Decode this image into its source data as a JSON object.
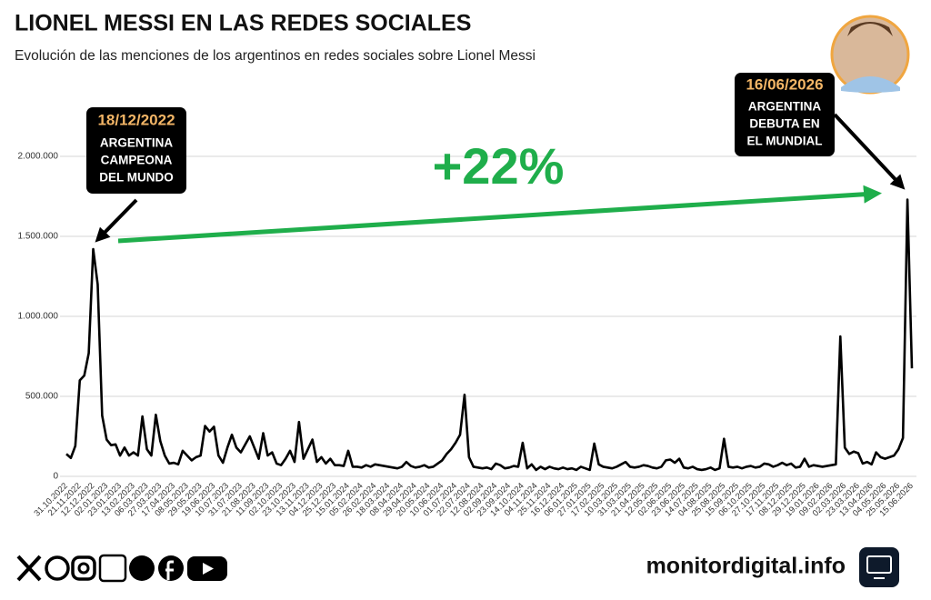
{
  "chart_data": {
    "type": "line",
    "title": "LIONEL MESSI EN LAS REDES SOCIALES",
    "subtitle": "Evolución de las menciones de los argentinos en redes sociales sobre Lionel Messi",
    "color": "#000000",
    "categories": [
      "31.10.2022",
      null,
      null,
      "21.11.2022",
      null,
      null,
      "12.12.2022",
      null,
      null,
      "02.01.2023",
      null,
      null,
      "23.01.2023",
      null,
      null,
      "13.02.2023",
      null,
      null,
      "06.03.2023",
      null,
      null,
      "27.03.2023",
      null,
      null,
      "17.04.2023",
      null,
      null,
      "08.05.2023",
      null,
      null,
      "29.05.2023",
      null,
      null,
      "19.06.2023",
      null,
      null,
      "10.07.2023",
      null,
      null,
      "31.07.2023",
      null,
      null,
      "21.08.2023",
      null,
      null,
      "11.09.2023",
      null,
      null,
      "02.10.2023",
      null,
      null,
      "23.10.2023",
      null,
      null,
      "13.11.2023",
      null,
      null,
      "04.12.2023",
      null,
      null,
      "25.12.2023",
      null,
      null,
      "15.01.2024",
      null,
      null,
      "05.02.2024",
      null,
      null,
      "26.02.2024",
      null,
      null,
      "18.03.2024",
      null,
      null,
      "08.04.2024",
      null,
      null,
      "29.04.2024",
      null,
      null,
      "20.05.2024",
      null,
      null,
      "10.06.2024",
      null,
      null,
      "01.07.2024",
      null,
      null,
      "22.07.2024",
      null,
      null,
      "12.08.2024",
      null,
      null,
      "02.09.2024",
      null,
      null,
      "23.09.2024",
      null,
      null,
      "14.10.2024",
      null,
      null,
      "04.11.2024",
      null,
      null,
      "25.11.2024",
      null,
      null,
      "16.12.2024",
      null,
      null,
      "06.01.2025",
      null,
      null,
      "27.01.2025",
      null,
      null,
      "17.02.2025",
      null,
      null,
      "10.03.2025",
      null,
      null,
      "31.03.2025",
      null,
      null,
      "21.04.2025",
      null,
      null,
      "12.05.2025",
      null,
      null,
      "02.06.2025",
      null,
      null,
      "23.06.2025",
      null,
      null,
      "14.07.2025",
      null,
      null,
      "04.08.2025",
      null,
      null,
      "25.08.2025",
      null,
      null,
      "15.09.2025",
      null,
      null,
      "06.10.2025",
      null,
      null,
      "27.10.2025",
      null,
      null,
      "17.11.2025",
      null,
      null,
      "08.12.2025",
      null,
      null,
      "29.12.2025",
      null,
      null,
      "19.01.2026",
      null,
      null,
      "09.02.2026",
      null,
      null,
      "02.03.2026",
      null,
      null,
      "23.03.2026",
      null,
      null,
      "13.04.2026",
      null,
      null,
      "04.05.2026",
      null,
      null,
      "25.05.2026",
      null,
      null,
      "15.06.2026"
    ],
    "values": [
      140000,
      115000,
      190000,
      600000,
      630000,
      770000,
      1420000,
      1200000,
      380000,
      230000,
      195000,
      200000,
      130000,
      180000,
      130000,
      150000,
      130000,
      375000,
      170000,
      130000,
      385000,
      220000,
      130000,
      80000,
      85000,
      75000,
      160000,
      130000,
      100000,
      120000,
      130000,
      315000,
      280000,
      310000,
      130000,
      85000,
      180000,
      260000,
      180000,
      150000,
      200000,
      250000,
      180000,
      110000,
      270000,
      130000,
      150000,
      80000,
      70000,
      110000,
      160000,
      90000,
      340000,
      110000,
      170000,
      230000,
      90000,
      120000,
      80000,
      110000,
      70000,
      70000,
      65000,
      160000,
      60000,
      60000,
      55000,
      70000,
      60000,
      75000,
      70000,
      65000,
      60000,
      55000,
      50000,
      60000,
      90000,
      65000,
      55000,
      60000,
      70000,
      55000,
      60000,
      80000,
      100000,
      140000,
      170000,
      210000,
      260000,
      510000,
      120000,
      60000,
      55000,
      50000,
      55000,
      45000,
      80000,
      70000,
      50000,
      55000,
      65000,
      60000,
      210000,
      50000,
      75000,
      40000,
      60000,
      45000,
      60000,
      50000,
      45000,
      55000,
      45000,
      50000,
      40000,
      60000,
      50000,
      40000,
      205000,
      75000,
      60000,
      55000,
      50000,
      60000,
      75000,
      90000,
      60000,
      55000,
      60000,
      70000,
      65000,
      55000,
      50000,
      60000,
      100000,
      105000,
      85000,
      110000,
      55000,
      50000,
      60000,
      45000,
      40000,
      45000,
      55000,
      40000,
      50000,
      235000,
      60000,
      55000,
      60000,
      50000,
      60000,
      65000,
      55000,
      60000,
      80000,
      75000,
      60000,
      70000,
      85000,
      70000,
      80000,
      55000,
      60000,
      110000,
      60000,
      70000,
      65000,
      60000,
      65000,
      70000,
      75000,
      875000,
      180000,
      140000,
      155000,
      145000,
      80000,
      90000,
      75000,
      150000,
      120000,
      110000,
      120000,
      130000,
      170000,
      240000,
      1730000,
      675000
    ],
    "ylim": [
      0,
      2300000
    ],
    "yticks": [
      0,
      {
        "value": 500000,
        "label": "500.000"
      },
      {
        "value": 1000000,
        "label": "1.000.000"
      },
      {
        "value": 1500000,
        "label": "1.500.000"
      },
      {
        "value": 2000000,
        "label": "2.000.000"
      }
    ],
    "grid": true,
    "change_label": "+22%",
    "annotations": [
      {
        "date": "18/12/2022",
        "lines": [
          "ARGENTINA",
          "CAMPEONA",
          "DEL MUNDO"
        ]
      },
      {
        "date": "16/06/2026",
        "lines": [
          "ARGENTINA",
          "DEBUTA EN",
          "EL MUNDIAL"
        ]
      }
    ]
  },
  "footer": {
    "site": "monitordigital.info"
  }
}
